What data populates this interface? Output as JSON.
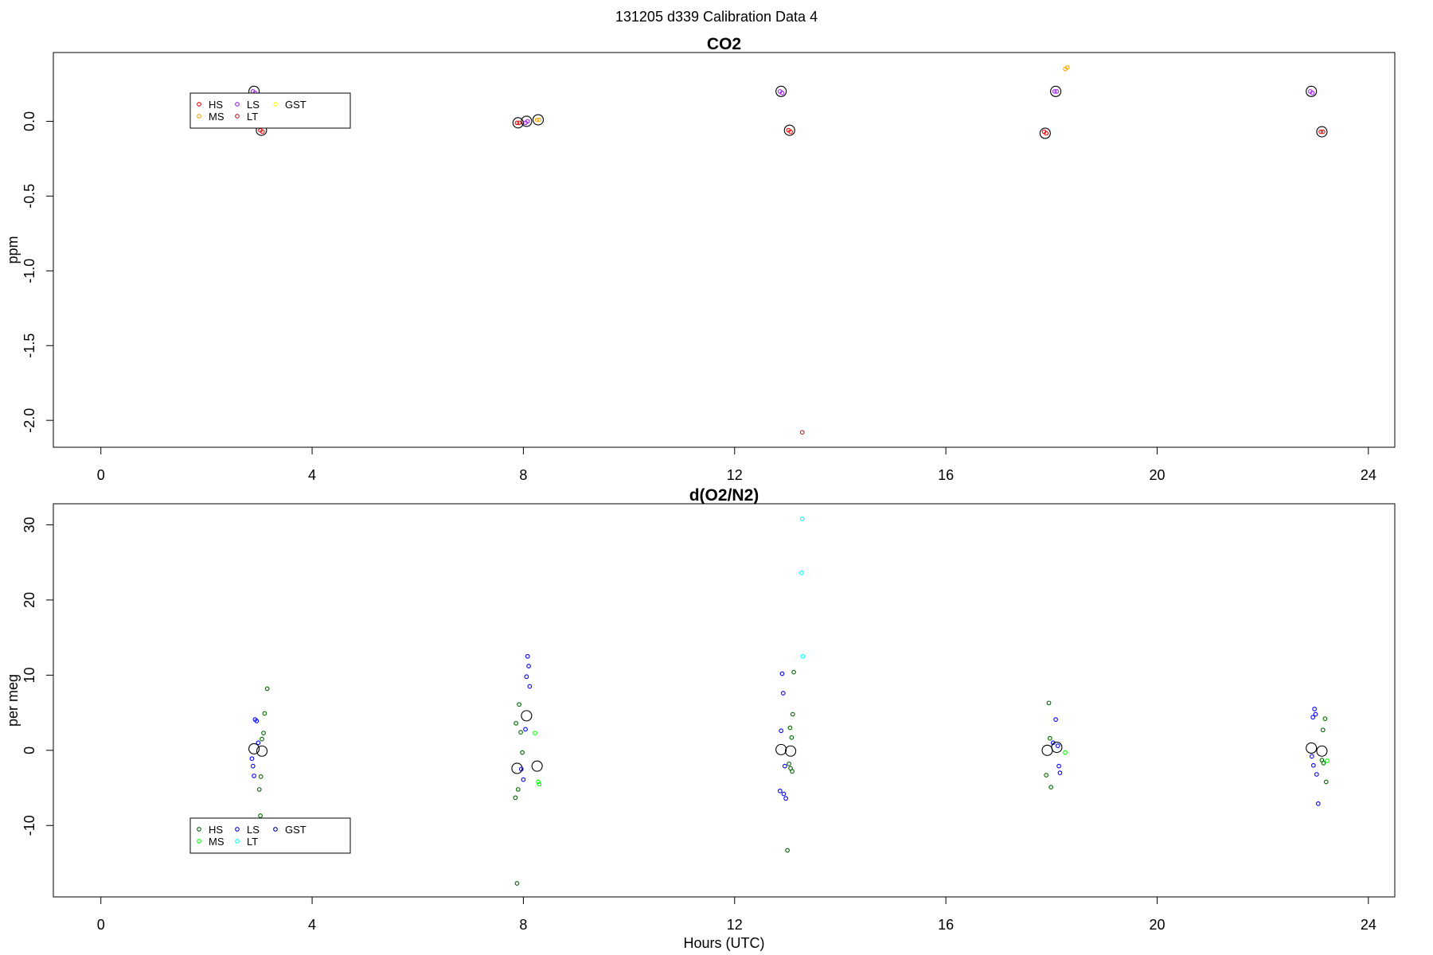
{
  "title": "131205   d339   Calibration Data 4",
  "chart_data": [
    {
      "type": "scatter",
      "title": "CO2",
      "ylabel": "ppm",
      "xlabel": "",
      "xlim": [
        -0.9,
        24.5
      ],
      "ylim": [
        -2.18,
        0.46
      ],
      "xticks": [
        0,
        4,
        8,
        12,
        16,
        20,
        24
      ],
      "yticks": [
        -2.0,
        -1.5,
        -1.0,
        -0.5,
        0.0
      ],
      "ytick_labels": [
        "-2.0",
        "-1.5",
        "-1.0",
        "-0.5",
        "0.0"
      ],
      "legend": {
        "placement": "top-left",
        "entries": [
          {
            "label": "HS",
            "color": "#ff0000"
          },
          {
            "label": "MS",
            "color": "#ffa500"
          },
          {
            "label": "LS",
            "color": "#a020f0"
          },
          {
            "label": "LT",
            "color": "#b22222"
          },
          {
            "label": "GST",
            "color": "#ffff00"
          }
        ]
      },
      "series": [
        {
          "legend_label": "HS",
          "color": "#ff0000",
          "points": [
            [
              3.02,
              -0.06
            ],
            [
              3.06,
              -0.07
            ],
            [
              7.88,
              -0.01
            ],
            [
              7.92,
              -0.01
            ],
            [
              13.02,
              -0.06
            ],
            [
              13.06,
              -0.07
            ],
            [
              17.86,
              -0.07
            ],
            [
              17.9,
              -0.08
            ],
            [
              23.1,
              -0.07
            ],
            [
              23.14,
              -0.07
            ]
          ]
        },
        {
          "legend_label": "MS",
          "color": "#ffa500",
          "points": [
            [
              8.26,
              0.01
            ],
            [
              8.3,
              0.01
            ],
            [
              18.26,
              0.35
            ],
            [
              18.3,
              0.36
            ]
          ]
        },
        {
          "legend_label": "LS",
          "color": "#a020f0",
          "points": [
            [
              2.88,
              0.2
            ],
            [
              2.92,
              0.19
            ],
            [
              8.04,
              -0.01
            ],
            [
              8.08,
              0.0
            ],
            [
              12.86,
              0.2
            ],
            [
              12.9,
              0.19
            ],
            [
              18.06,
              0.2
            ],
            [
              18.1,
              0.2
            ],
            [
              22.9,
              0.2
            ],
            [
              22.94,
              0.19
            ]
          ]
        },
        {
          "legend_label": "LT",
          "color": "#b22222",
          "points": [
            [
              13.28,
              -2.08
            ]
          ]
        }
      ],
      "means": [
        [
          2.9,
          0.2
        ],
        [
          3.04,
          -0.06
        ],
        [
          7.9,
          -0.01
        ],
        [
          8.06,
          0.0
        ],
        [
          8.28,
          0.01
        ],
        [
          12.88,
          0.2
        ],
        [
          13.04,
          -0.06
        ],
        [
          17.88,
          -0.08
        ],
        [
          18.08,
          0.2
        ],
        [
          22.92,
          0.2
        ],
        [
          23.12,
          -0.07
        ]
      ]
    },
    {
      "type": "scatter",
      "title": "d(O2/N2)",
      "ylabel": "per meg",
      "xlabel": "Hours (UTC)",
      "xlim": [
        -0.9,
        24.5
      ],
      "ylim": [
        -19.5,
        32.8
      ],
      "xticks": [
        0,
        4,
        8,
        12,
        16,
        20,
        24
      ],
      "yticks": [
        -10,
        0,
        10,
        20,
        30
      ],
      "ytick_labels": [
        "-10",
        "0",
        "10",
        "20",
        "30"
      ],
      "legend": {
        "placement": "bottom-left",
        "entries": [
          {
            "label": "HS",
            "color": "#006400"
          },
          {
            "label": "MS",
            "color": "#00ff00"
          },
          {
            "label": "LS",
            "color": "#0000ff"
          },
          {
            "label": "LT",
            "color": "#00ffff"
          },
          {
            "label": "GST",
            "color": "#00008b"
          }
        ]
      },
      "series": [
        {
          "legend_label": "HS",
          "color": "#006400",
          "points": [
            [
              3.15,
              8.2
            ],
            [
              3.1,
              4.9
            ],
            [
              3.08,
              2.3
            ],
            [
              3.05,
              1.5
            ],
            [
              3.03,
              -3.5
            ],
            [
              3.0,
              -5.2
            ],
            [
              3.02,
              -8.7
            ],
            [
              7.92,
              6.1
            ],
            [
              7.86,
              3.6
            ],
            [
              7.95,
              2.4
            ],
            [
              7.98,
              -0.3
            ],
            [
              7.9,
              -5.2
            ],
            [
              7.85,
              -6.3
            ],
            [
              7.88,
              -17.7
            ],
            [
              13.12,
              10.4
            ],
            [
              13.1,
              4.8
            ],
            [
              13.05,
              3.0
            ],
            [
              13.08,
              1.7
            ],
            [
              13.03,
              -1.8
            ],
            [
              13.06,
              -2.4
            ],
            [
              13.09,
              -2.8
            ],
            [
              13.0,
              -13.3
            ],
            [
              17.95,
              6.3
            ],
            [
              17.97,
              1.6
            ],
            [
              17.9,
              -3.3
            ],
            [
              17.99,
              -4.9
            ],
            [
              23.18,
              4.2
            ],
            [
              23.14,
              2.7
            ],
            [
              23.12,
              -1.3
            ],
            [
              23.15,
              -1.7
            ],
            [
              23.2,
              -4.2
            ]
          ]
        },
        {
          "legend_label": "MS",
          "color": "#00ff00",
          "points": [
            [
              8.22,
              2.3
            ],
            [
              8.28,
              -4.2
            ],
            [
              8.3,
              -4.5
            ],
            [
              18.26,
              -0.3
            ],
            [
              23.22,
              -1.4
            ]
          ]
        },
        {
          "legend_label": "LS",
          "color": "#0000ff",
          "points": [
            [
              2.92,
              4.1
            ],
            [
              2.95,
              3.9
            ],
            [
              2.98,
              1.0
            ],
            [
              2.86,
              -1.1
            ],
            [
              2.88,
              -2.1
            ],
            [
              2.9,
              -3.4
            ],
            [
              8.08,
              12.5
            ],
            [
              8.1,
              11.2
            ],
            [
              8.06,
              9.8
            ],
            [
              8.12,
              8.5
            ],
            [
              8.04,
              2.8
            ],
            [
              7.96,
              -2.5
            ],
            [
              8.0,
              -3.9
            ],
            [
              12.9,
              10.2
            ],
            [
              12.92,
              7.6
            ],
            [
              12.88,
              2.6
            ],
            [
              12.95,
              -2.1
            ],
            [
              12.86,
              -5.4
            ],
            [
              12.93,
              -5.8
            ],
            [
              12.97,
              -6.4
            ],
            [
              18.08,
              4.1
            ],
            [
              18.03,
              1.0
            ],
            [
              18.12,
              0.6
            ],
            [
              18.14,
              -2.1
            ],
            [
              18.16,
              -3.0
            ],
            [
              22.98,
              5.5
            ],
            [
              23.0,
              4.8
            ],
            [
              22.95,
              4.4
            ],
            [
              22.93,
              -0.8
            ],
            [
              22.96,
              -2.0
            ],
            [
              23.02,
              -3.2
            ],
            [
              23.05,
              -7.1
            ]
          ]
        },
        {
          "legend_label": "LT",
          "color": "#00ffff",
          "points": [
            [
              13.28,
              30.8
            ],
            [
              13.27,
              23.6
            ],
            [
              13.29,
              12.5
            ]
          ]
        }
      ],
      "means": [
        [
          2.9,
          0.2
        ],
        [
          3.05,
          -0.1
        ],
        [
          7.88,
          -2.4
        ],
        [
          8.06,
          4.6
        ],
        [
          8.26,
          -2.1
        ],
        [
          12.88,
          0.1
        ],
        [
          13.06,
          -0.1
        ],
        [
          17.92,
          0.0
        ],
        [
          18.1,
          0.4
        ],
        [
          22.92,
          0.3
        ],
        [
          23.12,
          -0.1
        ]
      ]
    }
  ]
}
